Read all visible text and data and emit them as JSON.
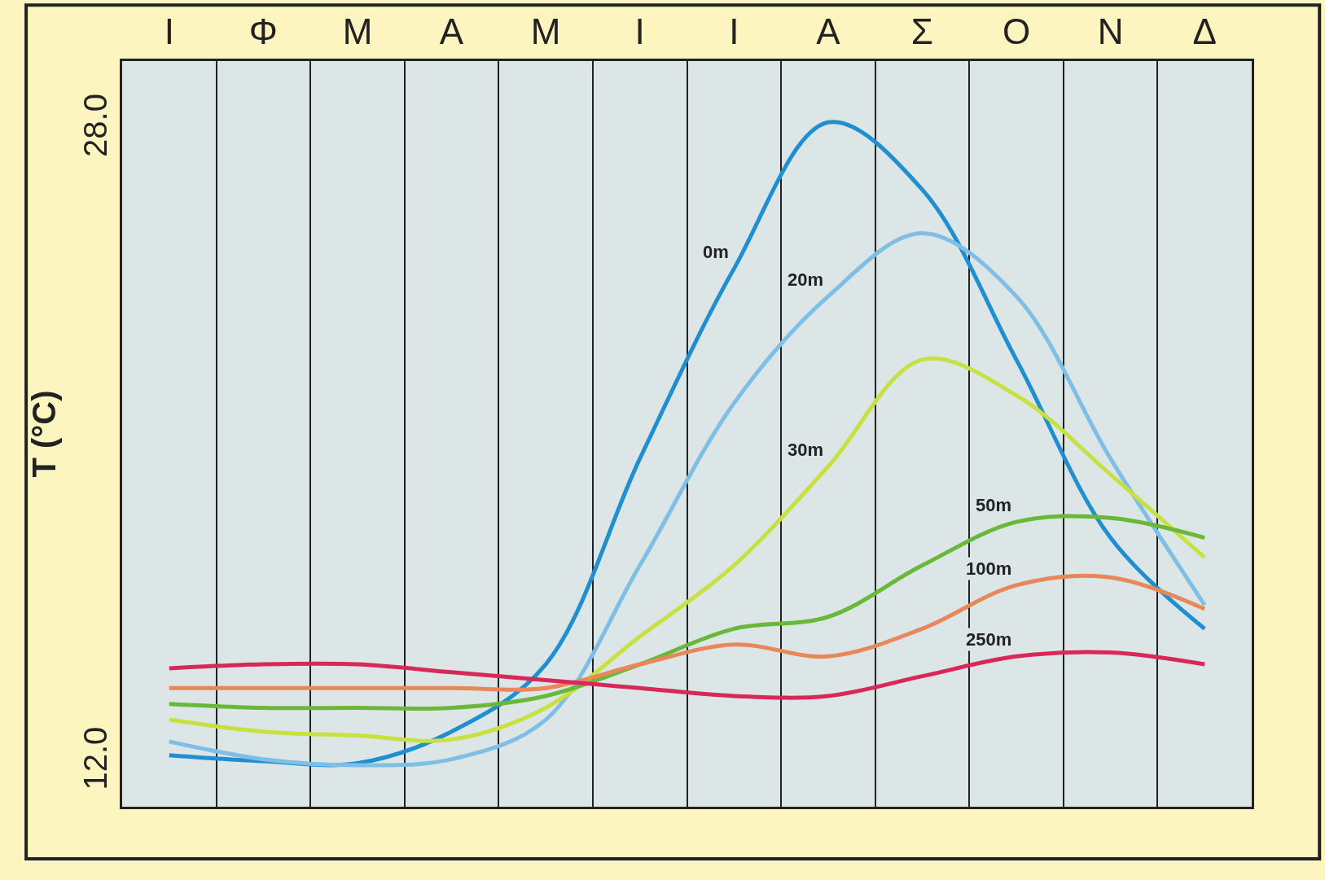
{
  "chart_data": {
    "type": "line",
    "ylabel": "T (°C)",
    "categories": [
      "Ι",
      "Φ",
      "Μ",
      "Α",
      "Μ",
      "Ι",
      "Ι",
      "Α",
      "Σ",
      "Ο",
      "Ν",
      "Δ"
    ],
    "series": [
      {
        "name": "0m",
        "color": "#1f8fd0",
        "values": [
          12.2,
          12.05,
          12.0,
          12.8,
          14.5,
          19.7,
          24.5,
          28.2,
          26.5,
          22.2,
          17.7,
          15.4
        ]
      },
      {
        "name": "20m",
        "color": "#7fbfe6",
        "values": [
          12.55,
          12.1,
          11.95,
          12.1,
          13.1,
          17.0,
          21.1,
          23.8,
          25.4,
          23.8,
          19.7,
          16.0
        ]
      },
      {
        "name": "30m",
        "color": "#c8e040",
        "values": [
          13.1,
          12.8,
          12.7,
          12.6,
          13.4,
          15.2,
          17.0,
          19.5,
          22.2,
          21.3,
          19.3,
          17.2
        ]
      },
      {
        "name": "50m",
        "color": "#6ab83a",
        "values": [
          13.5,
          13.4,
          13.4,
          13.4,
          13.7,
          14.5,
          15.4,
          15.7,
          17.0,
          18.1,
          18.2,
          17.7
        ]
      },
      {
        "name": "100m",
        "color": "#e8875a",
        "values": [
          13.9,
          13.9,
          13.9,
          13.9,
          13.9,
          14.5,
          15.0,
          14.7,
          15.4,
          16.5,
          16.7,
          15.9
        ]
      },
      {
        "name": "250m",
        "color": "#d8285a",
        "values": [
          14.4,
          14.5,
          14.5,
          14.3,
          14.1,
          13.9,
          13.7,
          13.7,
          14.2,
          14.7,
          14.8,
          14.5
        ]
      }
    ],
    "ylim": [
      10.9,
      29.75
    ],
    "yticks": [
      {
        "value": 12,
        "label": "12.0"
      },
      {
        "value": 28,
        "label": "28.0"
      }
    ],
    "grid": "x",
    "legend": false,
    "marker": "none",
    "line_style": "solid"
  }
}
